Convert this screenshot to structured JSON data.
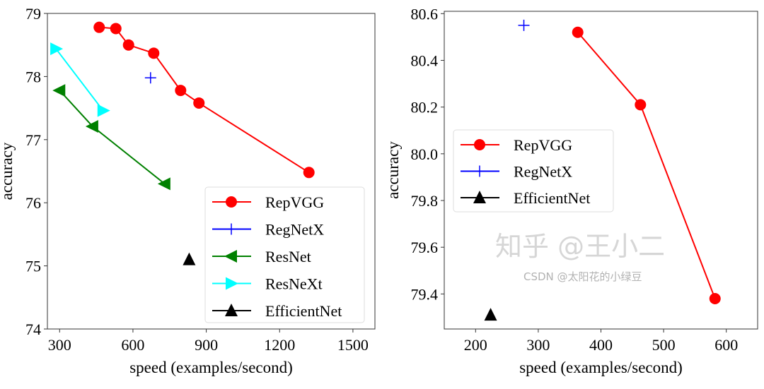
{
  "chart_data": [
    {
      "type": "line",
      "xlabel": "speed (examples/second)",
      "ylabel": "accuracy",
      "xlim": [
        250,
        1590
      ],
      "ylim": [
        74,
        79
      ],
      "xticks": [
        300,
        600,
        900,
        1200,
        1500
      ],
      "yticks": [
        74,
        75,
        76,
        77,
        78,
        79
      ],
      "grid": false,
      "legend_position": "lower-right",
      "series": [
        {
          "name": "RepVGG",
          "color": "#ff0000",
          "marker": "circle",
          "x": [
            462,
            530,
            582,
            685,
            795,
            870,
            1320
          ],
          "y": [
            78.78,
            78.76,
            78.5,
            78.37,
            77.78,
            77.58,
            76.48
          ]
        },
        {
          "name": "RegNetX",
          "color": "#0000ff",
          "marker": "plus",
          "x": [
            672
          ],
          "y": [
            77.98
          ]
        },
        {
          "name": "ResNet",
          "color": "#008000",
          "marker": "triangle-left",
          "x": [
            300,
            435,
            730
          ],
          "y": [
            77.78,
            77.21,
            76.3
          ]
        },
        {
          "name": "ResNeXt",
          "color": "#00ffff",
          "marker": "triangle-right",
          "x": [
            285,
            478
          ],
          "y": [
            78.44,
            77.46
          ]
        },
        {
          "name": "EfficientNet",
          "color": "#000000",
          "marker": "triangle-up",
          "x": [
            830
          ],
          "y": [
            75.1
          ]
        }
      ]
    },
    {
      "type": "line",
      "xlabel": "speed (examples/second)",
      "ylabel": "accuracy",
      "xlim": [
        150,
        650
      ],
      "ylim": [
        79.25,
        80.61
      ],
      "xticks": [
        200,
        300,
        400,
        500,
        600
      ],
      "yticks": [
        79.4,
        79.6,
        79.8,
        80.0,
        80.2,
        80.4,
        80.6
      ],
      "grid": false,
      "legend_position": "center-left",
      "series": [
        {
          "name": "RepVGG",
          "color": "#ff0000",
          "marker": "circle",
          "x": [
            363,
            463,
            582
          ],
          "y": [
            80.52,
            80.21,
            79.38
          ]
        },
        {
          "name": "RegNetX",
          "color": "#0000ff",
          "marker": "plus",
          "x": [
            277
          ],
          "y": [
            80.55
          ]
        },
        {
          "name": "EfficientNet",
          "color": "#000000",
          "marker": "triangle-up",
          "x": [
            224
          ],
          "y": [
            79.31
          ]
        }
      ]
    }
  ],
  "watermarks": [
    "知乎 @王小二",
    "CSDN @太阳花的小绿豆"
  ]
}
